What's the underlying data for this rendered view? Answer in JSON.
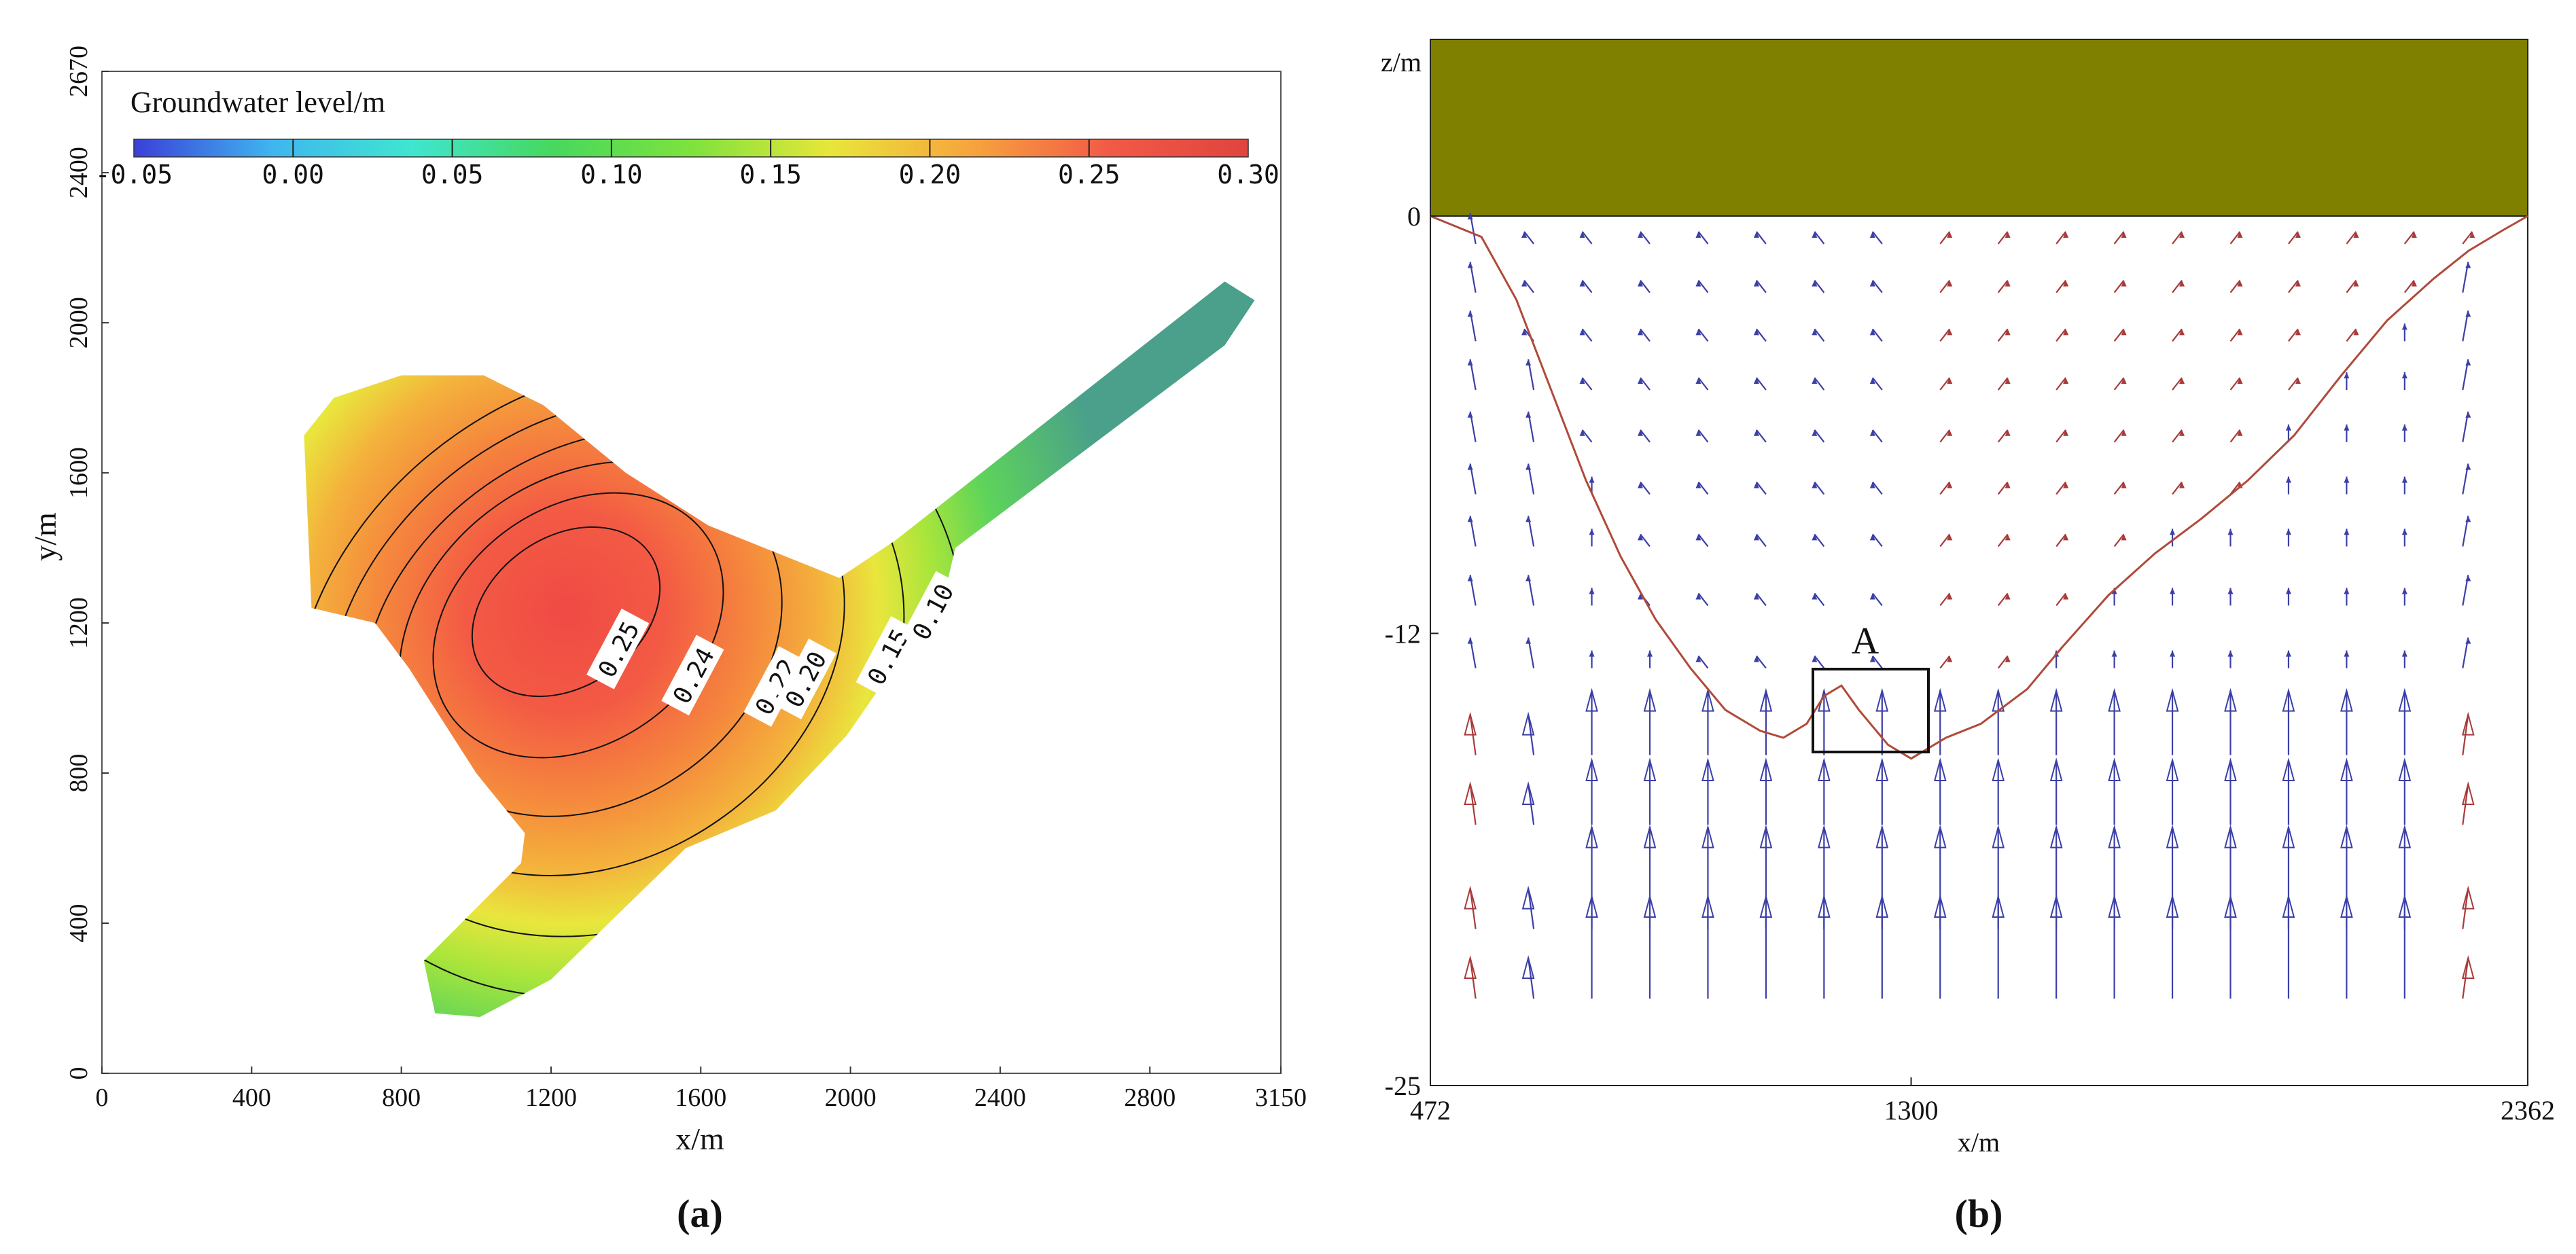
{
  "figure": {
    "panel_a_label": "(a)",
    "panel_b_label": "(b)"
  },
  "chart_data": [
    {
      "type": "heatmap",
      "panel": "(a)",
      "xlabel": "x/m",
      "ylabel": "y/m",
      "xlim": [
        0,
        3150
      ],
      "ylim": [
        0,
        2670
      ],
      "x_ticks": [
        "0",
        "400",
        "800",
        "1200",
        "1600",
        "2000",
        "2400",
        "2800",
        "3150"
      ],
      "y_ticks": [
        "0",
        "400",
        "800",
        "1200",
        "1600",
        "2000",
        "2400",
        "2670"
      ],
      "colorbar": {
        "title": "Groundwater level/m",
        "min": -0.05,
        "max": 0.3,
        "ticks": [
          "-0.05",
          "0.00",
          "0.05",
          "0.10",
          "0.15",
          "0.20",
          "0.25",
          "0.30"
        ],
        "colormap": [
          "#3b3fd8",
          "#3fb6ef",
          "#3fe6d0",
          "#46d85e",
          "#7ee23c",
          "#e8e63a",
          "#f7a53d",
          "#f25a46",
          "#e0443e"
        ]
      },
      "domain_polygon": [
        [
          1010,
          150
        ],
        [
          890,
          160
        ],
        [
          860,
          300
        ],
        [
          1120,
          560
        ],
        [
          1130,
          640
        ],
        [
          1000,
          800
        ],
        [
          820,
          1080
        ],
        [
          730,
          1200
        ],
        [
          560,
          1240
        ],
        [
          540,
          1700
        ],
        [
          620,
          1800
        ],
        [
          800,
          1860
        ],
        [
          1020,
          1860
        ],
        [
          1180,
          1780
        ],
        [
          1400,
          1600
        ],
        [
          1620,
          1460
        ],
        [
          1970,
          1320
        ],
        [
          2120,
          1420
        ],
        [
          3000,
          2110
        ],
        [
          3080,
          2060
        ],
        [
          3000,
          1940
        ],
        [
          2280,
          1400
        ],
        [
          2250,
          1270
        ],
        [
          2080,
          1030
        ],
        [
          1990,
          900
        ],
        [
          1800,
          700
        ],
        [
          1560,
          600
        ],
        [
          1200,
          250
        ]
      ],
      "peak": {
        "x": 1240,
        "y": 1230
      },
      "contours": [
        {
          "level": "0.25",
          "label_x": 1380,
          "label_y": 1130
        },
        {
          "level": "0.24",
          "label_x": 1580,
          "label_y": 1060
        },
        {
          "level": "0.22",
          "label_x": 1800,
          "label_y": 1030
        },
        {
          "level": "0.20",
          "label_x": 1880,
          "label_y": 1050
        },
        {
          "level": "0.15",
          "label_x": 2100,
          "label_y": 1110
        },
        {
          "level": "0.10",
          "label_x": 2220,
          "label_y": 1230
        }
      ]
    },
    {
      "type": "scatter",
      "panel": "(b)",
      "xlabel": "x/m",
      "ylabel": "z/m",
      "xlim": [
        472,
        2362
      ],
      "ylim": [
        -25,
        5.3
      ],
      "x_ticks": [
        "472",
        "1300",
        "2362"
      ],
      "y_ticks": [
        "0",
        "-12",
        "-25"
      ],
      "top_layer_color": "#808000",
      "vector_color_inflow": "#3b3fa6",
      "vector_color_outflow": "#a83a3a",
      "annotation": {
        "label": "A",
        "x_range": [
          1080,
          1282
        ],
        "z_range": [
          -15.4,
          -13.0
        ]
      },
      "free_surface": {
        "color": "#b04a3a",
        "x": [
          472,
          560,
          620,
          680,
          740,
          800,
          860,
          920,
          980,
          1040,
          1080,
          1120,
          1150,
          1180,
          1210,
          1260,
          1300,
          1360,
          1420,
          1500,
          1560,
          1640,
          1720,
          1800,
          1880,
          1960,
          2040,
          2120,
          2200,
          2260,
          2320,
          2362
        ],
        "z": [
          0,
          -0.6,
          -2.4,
          -5.0,
          -7.6,
          -9.8,
          -11.6,
          -13.0,
          -14.2,
          -14.8,
          -15.0,
          -14.6,
          -13.8,
          -13.5,
          -14.2,
          -15.2,
          -15.6,
          -15.0,
          -14.6,
          -13.6,
          -12.4,
          -10.9,
          -9.7,
          -8.7,
          -7.6,
          -6.3,
          -4.6,
          -3.0,
          -1.8,
          -1.0,
          -0.4,
          0
        ]
      },
      "velocity_field": {
        "columns_x": [
          550,
          650,
          750,
          850,
          950,
          1050,
          1150,
          1250,
          1350,
          1450,
          1550,
          1650,
          1750,
          1850,
          1950,
          2050,
          2150,
          2250
        ],
        "note": "arrow directions per grid cell in 'vectors'",
        "vectors": [
          [
            480,
            -0.6,
            -70,
            40,
            "in"
          ],
          [
            560,
            -1.5,
            -50,
            30,
            "in"
          ],
          [
            560,
            -4.4,
            -30,
            45,
            "in"
          ],
          [
            560,
            -7.5,
            0,
            50,
            "in"
          ],
          [
            560,
            -10.5,
            0,
            40,
            "in"
          ],
          [
            620,
            -2.4,
            -40,
            40,
            "in"
          ],
          [
            620,
            -5.0,
            -20,
            40,
            "in"
          ],
          [
            620,
            -8.0,
            -10,
            40,
            "in"
          ],
          [
            620,
            -11.0,
            0,
            30,
            "in"
          ],
          [
            690,
            -1.2,
            -30,
            10,
            "in"
          ],
          [
            690,
            -3.5,
            -30,
            10,
            "in"
          ],
          [
            700,
            -6.5,
            -20,
            20,
            "in"
          ],
          [
            700,
            -9.0,
            0,
            30,
            "in"
          ]
        ]
      }
    }
  ]
}
